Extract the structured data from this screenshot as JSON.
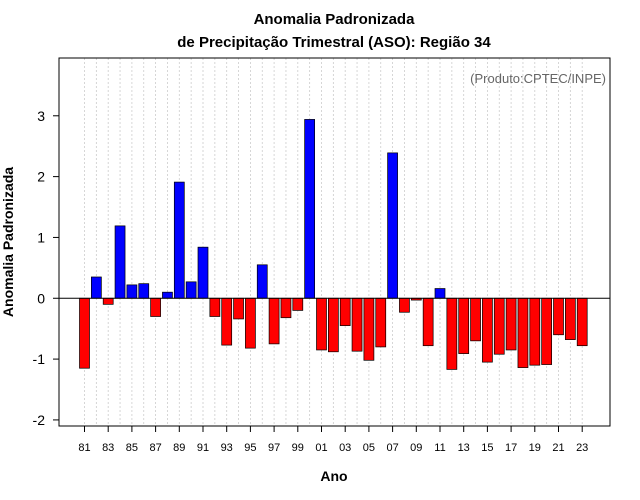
{
  "chart_data": {
    "type": "bar",
    "title": "Anomalia Padronizada",
    "subtitle": "de Precipitação Trimestral (ASO): Região 34",
    "xlabel": "Ano",
    "ylabel": "Anomalia Padronizada",
    "annotation": "(Produto:CPTEC/INPE)",
    "ylim": [
      -2.1,
      3.95
    ],
    "yticks": [
      -2,
      -1,
      0,
      1,
      2,
      3
    ],
    "years": [
      "81",
      "82",
      "83",
      "84",
      "85",
      "86",
      "87",
      "88",
      "89",
      "90",
      "91",
      "92",
      "93",
      "94",
      "95",
      "96",
      "97",
      "98",
      "99",
      "00",
      "01",
      "02",
      "03",
      "04",
      "05",
      "06",
      "07",
      "08",
      "09",
      "10",
      "11",
      "12",
      "13",
      "14",
      "15",
      "16",
      "17",
      "18",
      "19",
      "20",
      "21",
      "22",
      "23"
    ],
    "xtick_labels": [
      "81",
      "83",
      "85",
      "87",
      "89",
      "91",
      "93",
      "95",
      "97",
      "99",
      "01",
      "03",
      "05",
      "07",
      "09",
      "11",
      "13",
      "15",
      "17",
      "19",
      "21",
      "23"
    ],
    "values": [
      -1.15,
      0.35,
      -0.1,
      1.19,
      0.22,
      0.24,
      -0.3,
      0.1,
      1.91,
      0.27,
      0.84,
      -0.3,
      -0.77,
      -0.34,
      -0.82,
      0.55,
      -0.75,
      -0.32,
      -0.2,
      2.94,
      -0.85,
      -0.88,
      -0.45,
      -0.87,
      -1.02,
      -0.8,
      2.39,
      -0.23,
      -0.03,
      -0.78,
      0.16,
      -1.17,
      -0.91,
      -0.7,
      -1.05,
      -0.92,
      -0.85,
      -1.14,
      -1.1,
      -1.09,
      -0.6,
      -0.68,
      -0.78
    ],
    "colors": {
      "positive": "#0000ff",
      "negative": "#ff0000",
      "grid": "#cccccc",
      "zero_line": "#000000"
    },
    "grid": true
  }
}
